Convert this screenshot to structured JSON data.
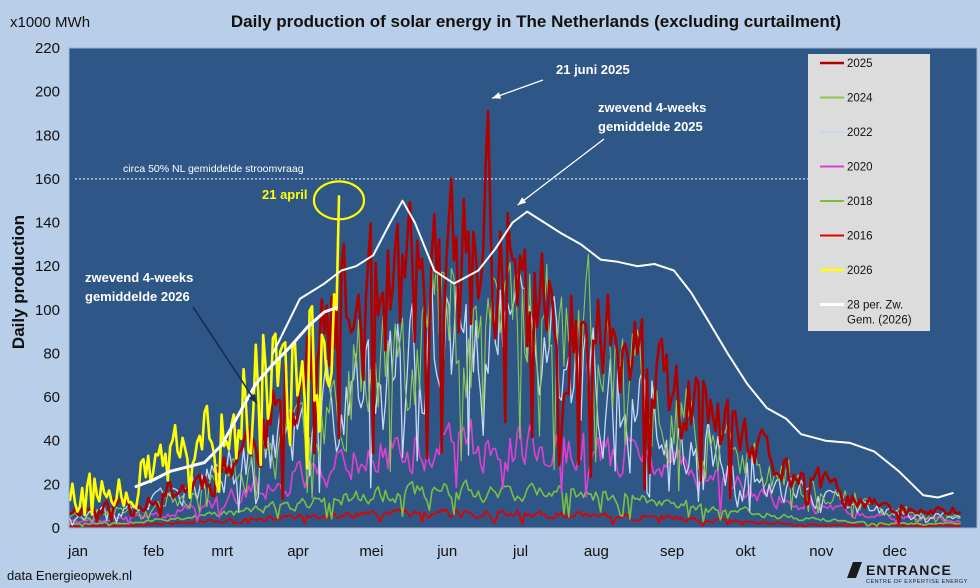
{
  "chart_data": {
    "type": "line",
    "title": "Daily production of solar energy in The Netherlands  (excluding curtailment)",
    "unit_label": "x1000 MWh",
    "ylabel": "Daily production",
    "ylim": [
      0,
      220
    ],
    "yticks": [
      0,
      20,
      40,
      60,
      80,
      100,
      120,
      140,
      160,
      180,
      200,
      220
    ],
    "months": [
      "jan",
      "feb",
      "mrt",
      "apr",
      "mei",
      "jun",
      "jul",
      "aug",
      "sep",
      "okt",
      "nov",
      "dec"
    ],
    "grid": false,
    "legend_position": "top-right",
    "source": "data Energieopwek.nl",
    "series": [
      {
        "name": "2025",
        "color": "#b00000",
        "width": 2.6,
        "amp": 0.34,
        "seed": 11,
        "noise_speed": 2,
        "anchors": [
          [
            1,
            8
          ],
          [
            15,
            10
          ],
          [
            31,
            13
          ],
          [
            45,
            18
          ],
          [
            59,
            24
          ],
          [
            74,
            38
          ],
          [
            90,
            55
          ],
          [
            105,
            85
          ],
          [
            120,
            100
          ],
          [
            135,
            110
          ],
          [
            151,
            112
          ],
          [
            166,
            120
          ],
          [
            181,
            112
          ],
          [
            196,
            95
          ],
          [
            212,
            92
          ],
          [
            227,
            80
          ],
          [
            243,
            60
          ],
          [
            258,
            55
          ],
          [
            273,
            38
          ],
          [
            288,
            30
          ],
          [
            304,
            22
          ],
          [
            319,
            14
          ],
          [
            334,
            9
          ],
          [
            349,
            7
          ],
          [
            365,
            8
          ]
        ]
      },
      {
        "name": "2024",
        "color": "#8cc850",
        "width": 1.1,
        "amp": 0.36,
        "seed": 23,
        "noise_speed": 2,
        "anchors": [
          [
            1,
            6
          ],
          [
            31,
            9
          ],
          [
            59,
            20
          ],
          [
            90,
            38
          ],
          [
            120,
            75
          ],
          [
            151,
            98
          ],
          [
            181,
            105
          ],
          [
            212,
            88
          ],
          [
            243,
            60
          ],
          [
            273,
            32
          ],
          [
            304,
            18
          ],
          [
            334,
            8
          ],
          [
            365,
            6
          ]
        ]
      },
      {
        "name": "2022",
        "color": "#c8d8f0",
        "width": 1.3,
        "amp": 0.38,
        "seed": 37,
        "noise_speed": 2,
        "anchors": [
          [
            1,
            5
          ],
          [
            31,
            9
          ],
          [
            59,
            22
          ],
          [
            90,
            42
          ],
          [
            120,
            62
          ],
          [
            151,
            80
          ],
          [
            181,
            85
          ],
          [
            212,
            68
          ],
          [
            243,
            48
          ],
          [
            273,
            28
          ],
          [
            304,
            14
          ],
          [
            334,
            7
          ],
          [
            365,
            5
          ]
        ]
      },
      {
        "name": "2020",
        "color": "#e040d0",
        "width": 1.6,
        "amp": 0.3,
        "seed": 41,
        "noise_speed": 2,
        "anchors": [
          [
            1,
            3
          ],
          [
            31,
            5
          ],
          [
            59,
            11
          ],
          [
            90,
            22
          ],
          [
            120,
            33
          ],
          [
            151,
            38
          ],
          [
            181,
            40
          ],
          [
            212,
            36
          ],
          [
            243,
            30
          ],
          [
            273,
            19
          ],
          [
            304,
            10
          ],
          [
            334,
            5
          ],
          [
            365,
            3
          ]
        ]
      },
      {
        "name": "2018",
        "color": "#78c040",
        "width": 1.6,
        "amp": 0.25,
        "seed": 53,
        "noise_speed": 2,
        "anchors": [
          [
            1,
            2
          ],
          [
            31,
            3
          ],
          [
            59,
            6
          ],
          [
            90,
            10
          ],
          [
            120,
            15
          ],
          [
            151,
            17
          ],
          [
            181,
            17
          ],
          [
            212,
            15
          ],
          [
            243,
            12
          ],
          [
            273,
            8
          ],
          [
            304,
            4
          ],
          [
            334,
            2
          ],
          [
            365,
            2
          ]
        ]
      },
      {
        "name": "2016",
        "color": "#e00000",
        "width": 1.8,
        "amp": 0.3,
        "seed": 67,
        "noise_speed": 2,
        "anchors": [
          [
            1,
            1
          ],
          [
            31,
            1.5
          ],
          [
            59,
            3
          ],
          [
            90,
            5
          ],
          [
            120,
            6
          ],
          [
            151,
            7
          ],
          [
            181,
            7
          ],
          [
            212,
            6
          ],
          [
            243,
            5
          ],
          [
            273,
            3
          ],
          [
            304,
            1.5
          ],
          [
            334,
            1
          ],
          [
            365,
            1
          ]
        ]
      },
      {
        "name": "2026",
        "color": "#ffff00",
        "width": 2.6,
        "amp": 0.48,
        "seed": 79,
        "noise_speed": 3,
        "end": 111,
        "anchors": [
          [
            1,
            16
          ],
          [
            15,
            18
          ],
          [
            31,
            24
          ],
          [
            45,
            30
          ],
          [
            59,
            40
          ],
          [
            74,
            60
          ],
          [
            90,
            72
          ],
          [
            100,
            80
          ],
          [
            111,
            100
          ]
        ]
      },
      {
        "name": "28 per. Zw. Gem. (2026)",
        "color": "#ffffff",
        "width": 3,
        "start": 28,
        "points": [
          [
            28,
            19
          ],
          [
            35,
            22
          ],
          [
            42,
            26
          ],
          [
            49,
            28
          ],
          [
            56,
            30
          ],
          [
            63,
            38
          ],
          [
            70,
            52
          ],
          [
            77,
            66
          ],
          [
            84,
            75
          ],
          [
            91,
            83
          ],
          [
            98,
            92
          ],
          [
            105,
            99
          ],
          [
            110,
            101
          ]
        ]
      },
      {
        "name": "4-weeks 2025",
        "color": "#ffffff",
        "width": 2,
        "in_legend": false,
        "points": [
          [
            84,
            80
          ],
          [
            95,
            105
          ],
          [
            105,
            112
          ],
          [
            112,
            118
          ],
          [
            118,
            120
          ],
          [
            125,
            125
          ],
          [
            132,
            140
          ],
          [
            137,
            150
          ],
          [
            142,
            140
          ],
          [
            150,
            118
          ],
          [
            158,
            112
          ],
          [
            168,
            118
          ],
          [
            175,
            128
          ],
          [
            182,
            140
          ],
          [
            188,
            145
          ],
          [
            195,
            140
          ],
          [
            202,
            135
          ],
          [
            210,
            130
          ],
          [
            218,
            123
          ],
          [
            225,
            122
          ],
          [
            233,
            120
          ],
          [
            240,
            121
          ],
          [
            248,
            118
          ],
          [
            255,
            108
          ],
          [
            262,
            95
          ],
          [
            270,
            80
          ],
          [
            278,
            66
          ],
          [
            286,
            55
          ],
          [
            294,
            50
          ],
          [
            300,
            43
          ],
          [
            310,
            40
          ],
          [
            320,
            39
          ],
          [
            330,
            35
          ],
          [
            340,
            26
          ],
          [
            350,
            15
          ],
          [
            356,
            14
          ],
          [
            362,
            16
          ]
        ]
      }
    ],
    "reference_line": {
      "y": 160,
      "label": "circa 50% NL gemiddelde stroomvraag"
    },
    "annotations": {
      "peak_2025": "21 juni 2025",
      "avg_2025_line1": "zwevend 4-weeks",
      "avg_2025_line2": "gemiddelde 2025",
      "avg_2026_line1": "zwevend 4-weeks",
      "avg_2026_line2": "gemiddelde 2026",
      "april_peak": "21 april"
    },
    "highlight_point": {
      "day": 111,
      "value": 152
    },
    "peak_2025_point": {
      "day": 172,
      "value": 191
    },
    "logo": {
      "name": "ENTRANCE",
      "tagline": "CENTRE OF EXPERTISE ENERGY"
    }
  }
}
